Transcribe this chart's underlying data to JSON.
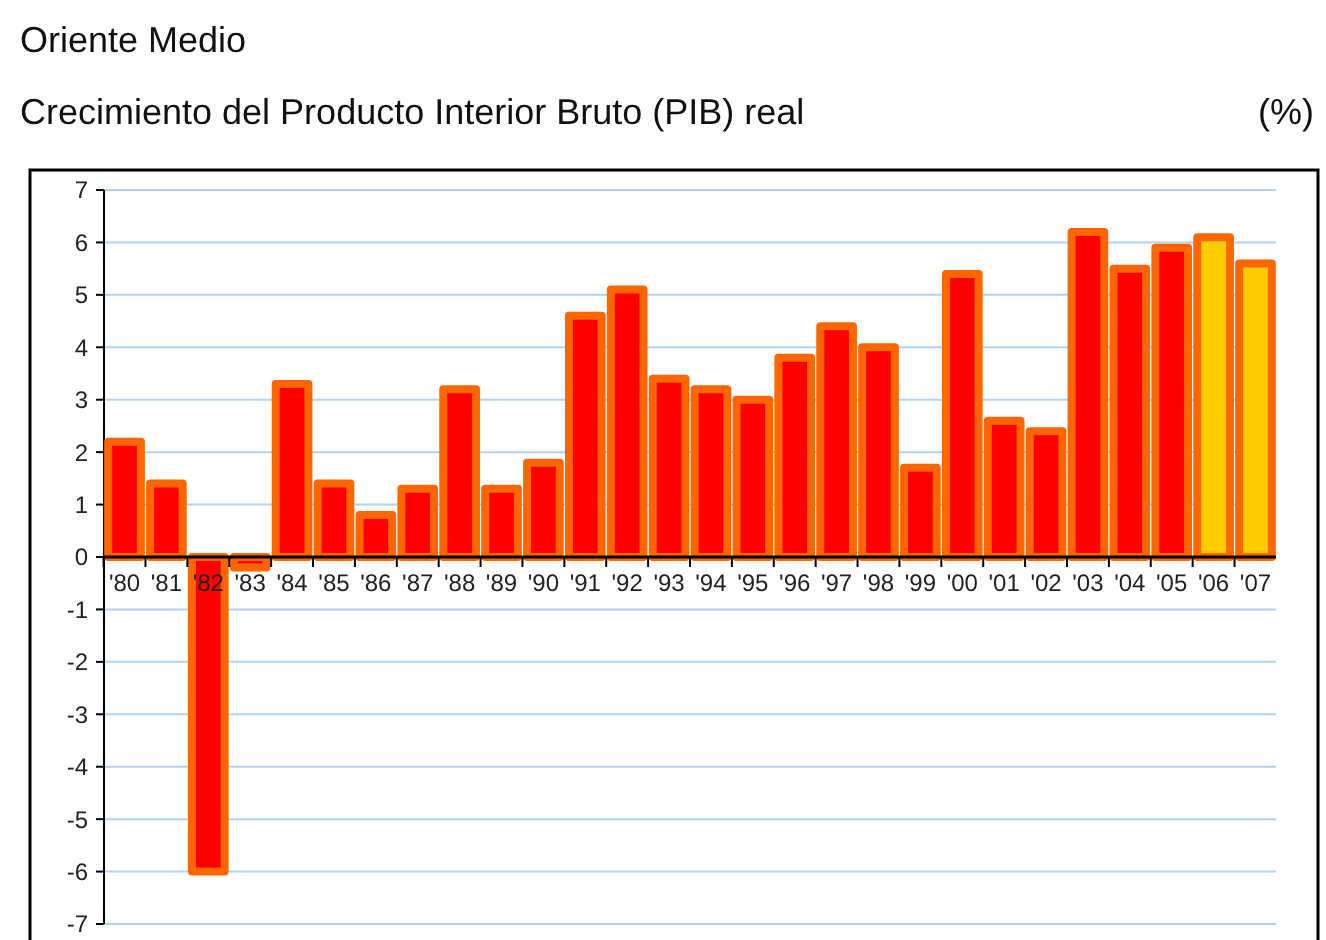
{
  "chart_data": {
    "type": "bar",
    "title": "Oriente Medio",
    "subtitle": "Crecimiento del Producto Interior Bruto (PIB) real",
    "ylabel": "(%)",
    "categories": [
      "'80",
      "'81",
      "'82",
      "'83",
      "'84",
      "'85",
      "'86",
      "'87",
      "'88",
      "'89",
      "'90",
      "'91",
      "'92",
      "'93",
      "'94",
      "'95",
      "'96",
      "'97",
      "'98",
      "'99",
      "'00",
      "'01",
      "'02",
      "'03",
      "'04",
      "'05",
      "'06",
      "'07"
    ],
    "values": [
      2.2,
      1.4,
      -6.0,
      -0.2,
      3.3,
      1.4,
      0.8,
      1.3,
      3.2,
      1.3,
      1.8,
      4.6,
      5.1,
      3.4,
      3.2,
      3.0,
      3.8,
      4.4,
      4.0,
      1.7,
      5.4,
      2.6,
      2.4,
      6.2,
      5.5,
      5.9,
      6.1,
      5.6
    ],
    "colors": [
      "#ff0000",
      "#ff0000",
      "#ff0000",
      "#ff0000",
      "#ff0000",
      "#ff0000",
      "#ff0000",
      "#ff0000",
      "#ff0000",
      "#ff0000",
      "#ff0000",
      "#ff0000",
      "#ff0000",
      "#ff0000",
      "#ff0000",
      "#ff0000",
      "#ff0000",
      "#ff0000",
      "#ff0000",
      "#ff0000",
      "#ff0000",
      "#ff0000",
      "#ff0000",
      "#ff0000",
      "#ff0000",
      "#ff0000",
      "#ffcc00",
      "#ffcc00"
    ],
    "ylim": [
      -7,
      7
    ],
    "yticks": [
      -7,
      -6,
      -5,
      -4,
      -3,
      -2,
      -1,
      0,
      1,
      2,
      3,
      4,
      5,
      6,
      7
    ],
    "grid": "y"
  }
}
